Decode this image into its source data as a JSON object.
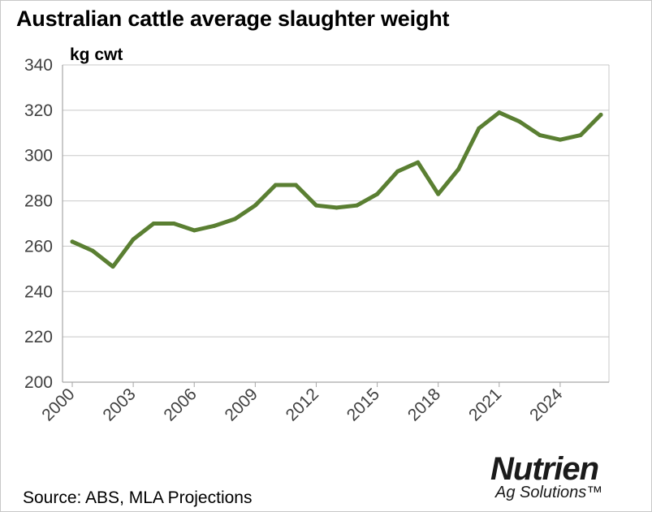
{
  "header": {
    "title": "Australian cattle average slaughter weight"
  },
  "footer": {
    "source": "Source: ABS, MLA Projections"
  },
  "logo": {
    "word": "Nutrien",
    "tagline": "Ag Solutions™"
  },
  "colors": {
    "line": "#5a7f32",
    "grid": "#c8c8c8",
    "axis": "#a6a6a6",
    "tick_text": "#404040",
    "logo_accent": "#7bb23a"
  },
  "chart_data": {
    "type": "line",
    "title": "Australian cattle average slaughter weight",
    "ylabel": "kg cwt",
    "xlabel": "",
    "ylim": [
      200,
      340
    ],
    "yticks": [
      200,
      220,
      240,
      260,
      280,
      300,
      320,
      340
    ],
    "xticks": [
      "2000",
      "2003",
      "2006",
      "2009",
      "2012",
      "2015",
      "2018",
      "2021",
      "2024"
    ],
    "grid": true,
    "x": [
      2000,
      2001,
      2002,
      2003,
      2004,
      2005,
      2006,
      2007,
      2008,
      2009,
      2010,
      2011,
      2012,
      2013,
      2014,
      2015,
      2016,
      2017,
      2018,
      2019,
      2020,
      2021,
      2022,
      2023,
      2024,
      2025,
      2026
    ],
    "series": [
      {
        "values": [
          262,
          258,
          251,
          263,
          270,
          270,
          267,
          269,
          272,
          278,
          287,
          287,
          278,
          277,
          278,
          283,
          293,
          297,
          283,
          294,
          312,
          319,
          315,
          309,
          307,
          309,
          318
        ]
      }
    ]
  }
}
